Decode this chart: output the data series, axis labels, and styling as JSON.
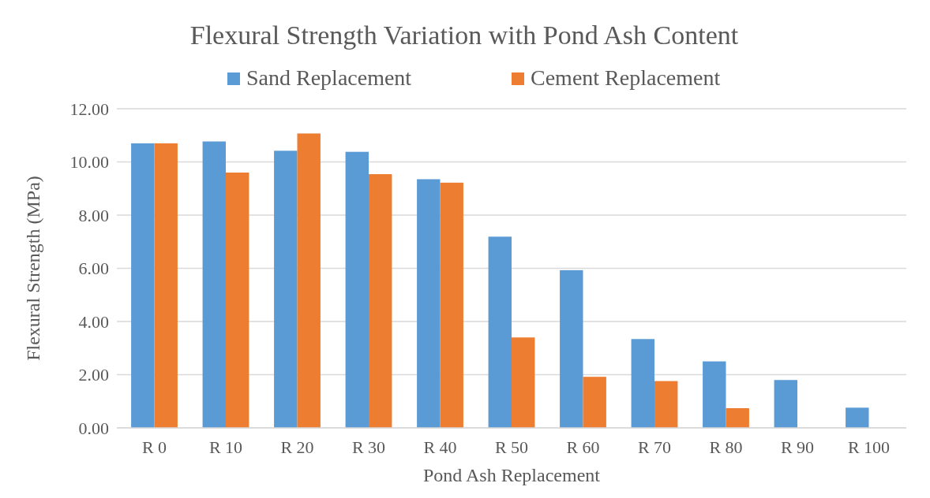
{
  "chart_data": {
    "type": "bar",
    "title": "Flexural Strength Variation with Pond Ash Content",
    "xlabel": "Pond Ash Replacement",
    "ylabel": "Flexural Strength (MPa)",
    "categories": [
      "R 0",
      "R 10",
      "R 20",
      "R 30",
      "R 40",
      "R 50",
      "R 60",
      "R 70",
      "R 80",
      "R 90",
      "R 100"
    ],
    "series": [
      {
        "name": "Sand Replacement",
        "color": "#5b9bd5",
        "values": [
          10.7,
          10.77,
          10.42,
          10.38,
          9.35,
          7.19,
          5.93,
          3.34,
          2.5,
          1.8,
          0.76
        ]
      },
      {
        "name": "Cement Replacement",
        "color": "#ed7d31",
        "values": [
          10.7,
          9.6,
          11.07,
          9.54,
          9.22,
          3.4,
          1.92,
          1.76,
          0.74,
          0,
          0
        ]
      }
    ],
    "ylim": [
      0,
      12
    ],
    "yticks": [
      {
        "value": 0,
        "label": "0.00"
      },
      {
        "value": 2,
        "label": "2.00"
      },
      {
        "value": 4,
        "label": "4.00"
      },
      {
        "value": 6,
        "label": "6.00"
      },
      {
        "value": 8,
        "label": "8.00"
      },
      {
        "value": 10,
        "label": "10.00"
      },
      {
        "value": 12,
        "label": "12.00"
      }
    ],
    "grid": "y",
    "legend": "top"
  }
}
